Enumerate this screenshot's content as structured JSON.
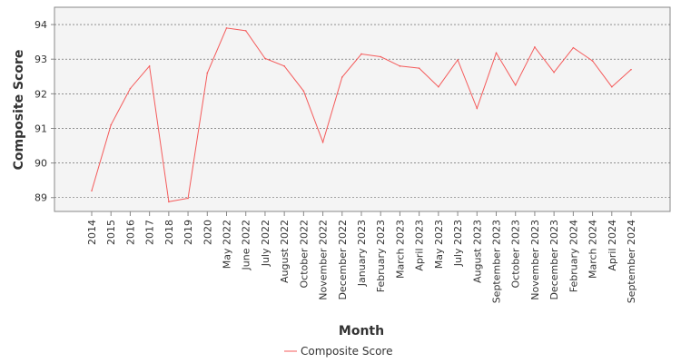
{
  "chart_data": {
    "type": "line",
    "title": "",
    "xlabel": "Month",
    "ylabel": "Composite Score",
    "ylim": [
      88.6,
      94.5
    ],
    "yticks": [
      89,
      90,
      91,
      92,
      93,
      94
    ],
    "grid": "horizontal dashed",
    "legend": "bottom-center",
    "categories": [
      "2014",
      "2015",
      "2016",
      "2017",
      "2018",
      "2019",
      "2020",
      "May 2022",
      "June 2022",
      "July 2022",
      "August 2022",
      "October 2022",
      "November 2022",
      "December 2022",
      "January 2023",
      "February 2023",
      "March 2023",
      "April 2023",
      "May 2023",
      "July 2023",
      "August 2023",
      "September 2023",
      "October 2023",
      "November 2023",
      "December 2023",
      "February 2024",
      "March 2024",
      "April 2024",
      "September 2024"
    ],
    "series": [
      {
        "name": "Composite Score",
        "color": "#f45b5b",
        "values": [
          89.2,
          91.1,
          92.15,
          92.8,
          88.88,
          88.98,
          92.6,
          93.9,
          93.82,
          93.02,
          92.8,
          92.08,
          90.6,
          92.48,
          93.15,
          93.07,
          92.8,
          92.74,
          92.2,
          92.98,
          91.58,
          93.18,
          92.25,
          93.35,
          92.62,
          93.33,
          92.95,
          92.2,
          92.7
        ]
      }
    ]
  }
}
